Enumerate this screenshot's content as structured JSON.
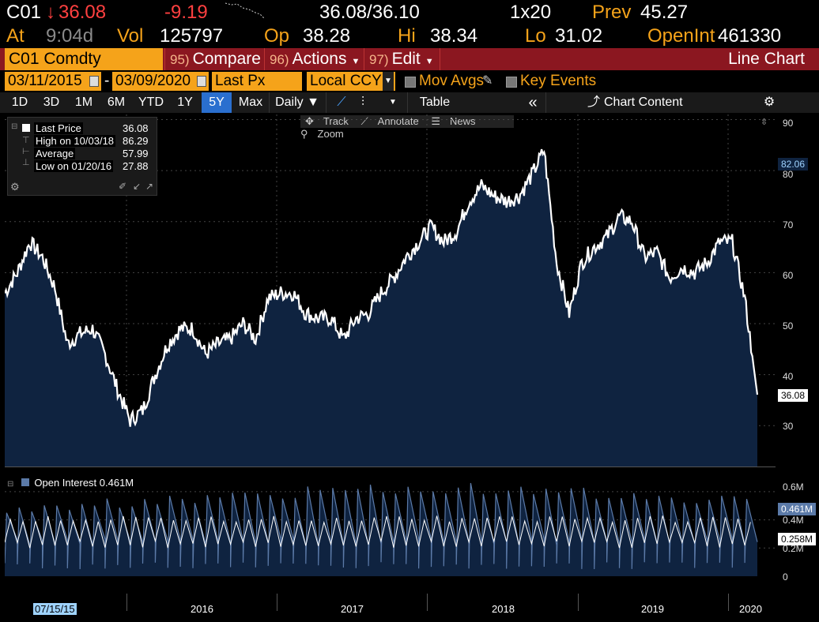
{
  "quote_line1": {
    "ticker": "C01",
    "arrow": "↓",
    "last": "36.08",
    "change": "-9.19",
    "bid_ask": "36.08/36.10",
    "size": "1x20",
    "prev_label": "Prev",
    "prev_value": "45.27"
  },
  "quote_line2": {
    "at_label": "At",
    "at_value": "9:04d",
    "vol_label": "Vol",
    "vol_value": "125797",
    "op_label": "Op",
    "op_value": "38.28",
    "hi_label": "Hi",
    "hi_value": "38.34",
    "lo_label": "Lo",
    "lo_value": "31.02",
    "openint_label": "OpenInt",
    "openint_value": "461330"
  },
  "toolbar": {
    "security": "C01 Comdty",
    "compare_num": "95)",
    "compare_label": "Compare",
    "actions_num": "96)",
    "actions_label": "Actions",
    "edit_num": "97)",
    "edit_label": "Edit",
    "chart_type": "Line Chart"
  },
  "controls": {
    "start_date": "03/11/2015",
    "dash": "-",
    "end_date": "03/09/2020",
    "field": "Last Px",
    "currency": "Local CCY",
    "mov_avgs": "Mov Avgs",
    "key_events": "Key Events"
  },
  "periods": [
    "1D",
    "3D",
    "1M",
    "6M",
    "YTD",
    "1Y",
    "5Y",
    "Max"
  ],
  "selected_period": "5Y",
  "frequency": "Daily",
  "table_label": "Table",
  "chart_content_label": "Chart Content",
  "chart_tools": [
    "Track",
    "Annotate",
    "News",
    "Zoom"
  ],
  "legend": {
    "last_price_label": "Last Price",
    "last_price_value": "36.08",
    "high_label": "High on 10/03/18",
    "high_value": "86.29",
    "average_label": "Average",
    "average_value": "57.99",
    "low_label": "Low on 01/20/16",
    "low_value": "27.88"
  },
  "price_axis_labels": [
    "90",
    "80",
    "70",
    "60",
    "50",
    "40",
    "30"
  ],
  "price_tags": {
    "hover": "82.06",
    "last": "36.08"
  },
  "oi_legend": "Open Interest 0.461M",
  "oi_axis_labels": [
    "0.6M",
    "0.4M",
    "0.2M",
    "0"
  ],
  "oi_tags": {
    "oi": "0.461M",
    "avg": "0.258M"
  },
  "x_axis": {
    "cursor_date": "07/15/15",
    "years": [
      "2016",
      "2017",
      "2018",
      "2019",
      "2020"
    ]
  },
  "colors": {
    "orange": "#f5a31a",
    "area_fill": "#0f2340",
    "accent_red": "#8b1720"
  },
  "chart_data": {
    "type": "area",
    "title": "",
    "series": [
      {
        "name": "Last Price",
        "x": [
          "2015-03",
          "2015-04",
          "2015-05",
          "2015-06",
          "2015-07",
          "2015-08",
          "2015-09",
          "2015-10",
          "2015-11",
          "2015-12",
          "2016-01",
          "2016-02",
          "2016-03",
          "2016-04",
          "2016-05",
          "2016-06",
          "2016-07",
          "2016-08",
          "2016-09",
          "2016-10",
          "2016-11",
          "2016-12",
          "2017-01",
          "2017-02",
          "2017-03",
          "2017-04",
          "2017-05",
          "2017-06",
          "2017-07",
          "2017-08",
          "2017-09",
          "2017-10",
          "2017-11",
          "2017-12",
          "2018-01",
          "2018-02",
          "2018-03",
          "2018-04",
          "2018-05",
          "2018-06",
          "2018-07",
          "2018-08",
          "2018-09",
          "2018-10",
          "2018-11",
          "2018-12",
          "2019-01",
          "2019-02",
          "2019-03",
          "2019-04",
          "2019-05",
          "2019-06",
          "2019-07",
          "2019-08",
          "2019-09",
          "2019-10",
          "2019-11",
          "2019-12",
          "2020-01",
          "2020-02",
          "2020-03"
        ],
        "values": [
          56,
          60,
          66,
          63,
          57,
          46,
          48,
          49,
          44,
          37,
          31,
          33,
          40,
          46,
          49,
          49,
          44,
          46,
          47,
          50,
          47,
          55,
          56,
          56,
          52,
          51,
          51,
          47,
          51,
          52,
          56,
          59,
          63,
          66,
          69,
          66,
          68,
          74,
          77,
          75,
          74,
          75,
          79,
          84,
          62,
          52,
          62,
          65,
          67,
          71,
          70,
          63,
          64,
          59,
          61,
          60,
          62,
          66,
          66,
          55,
          36.08
        ]
      },
      {
        "name": "Open Interest",
        "x": [
          "2015",
          "2016",
          "2017",
          "2018",
          "2019",
          "2020"
        ],
        "values": [
          0.4,
          0.45,
          0.52,
          0.55,
          0.5,
          0.461
        ]
      }
    ],
    "ylim": [
      22,
      91
    ],
    "oi_ylim": [
      0,
      0.7
    ],
    "xlabel": "",
    "ylabel": ""
  }
}
